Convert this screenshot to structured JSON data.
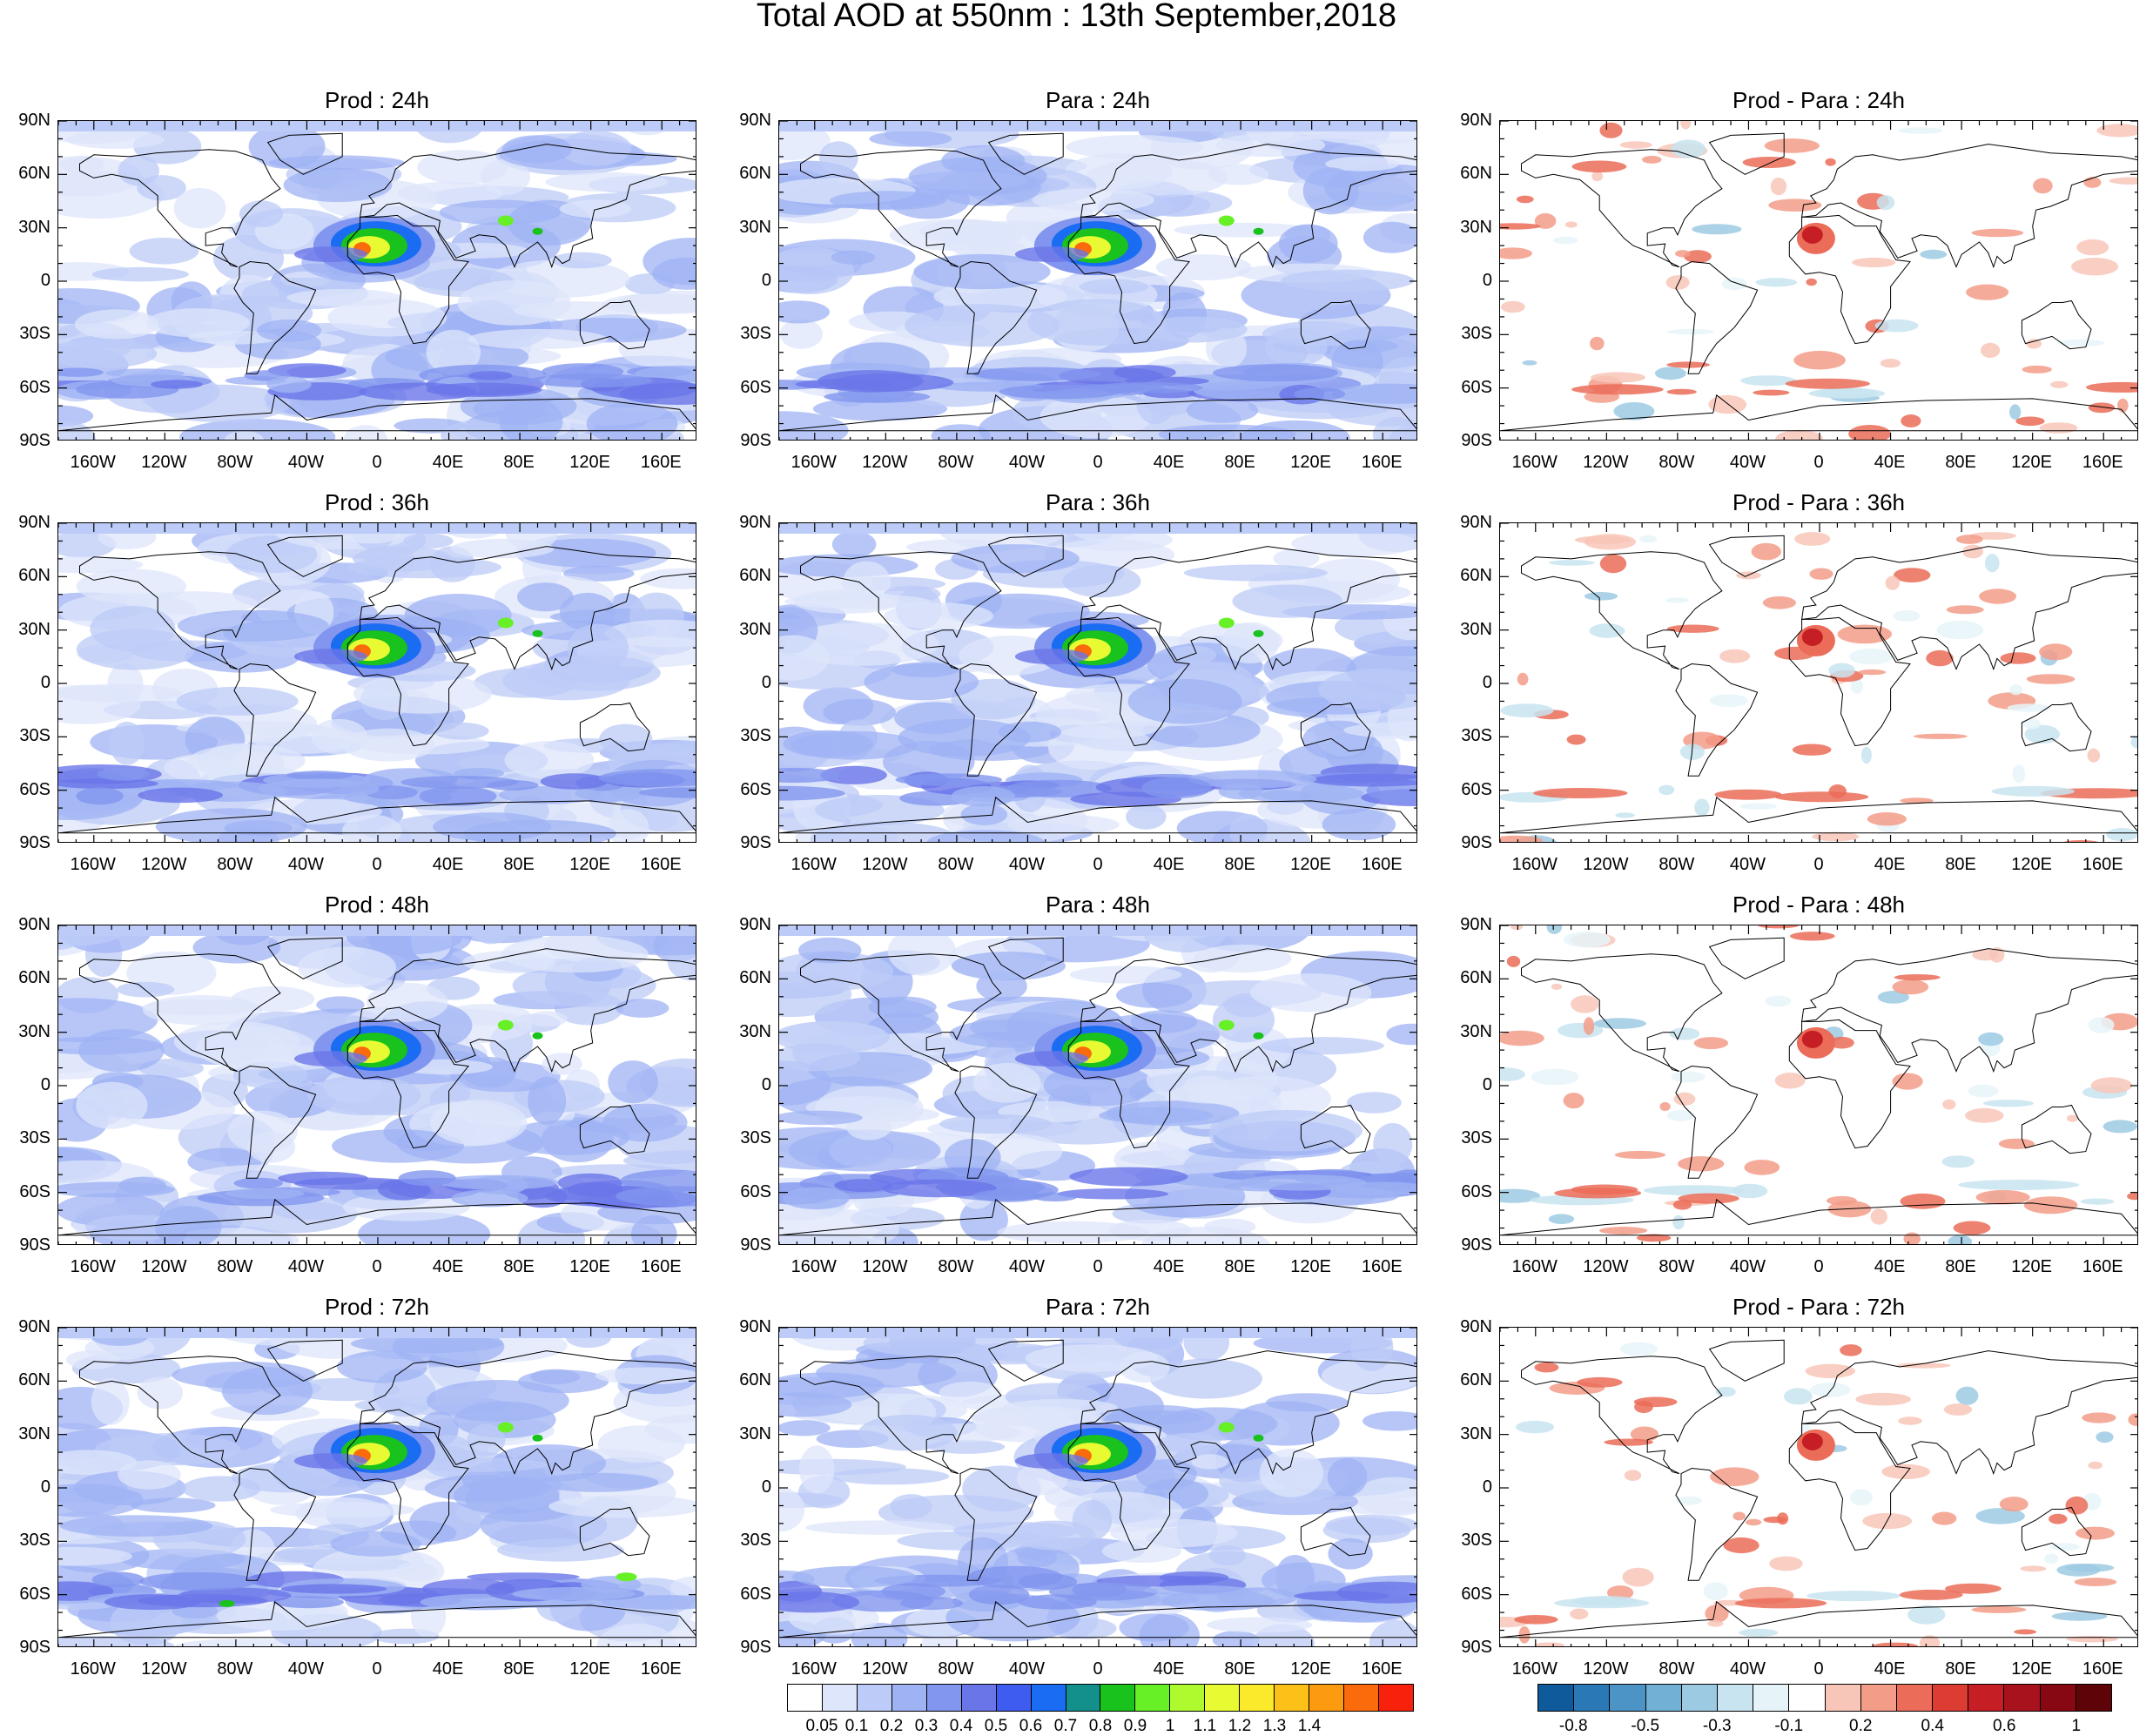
{
  "title": "Total AOD at 550nm : 13th September,2018",
  "rows": [
    {
      "hour": "24h",
      "titles": [
        "Prod : 24h",
        "Para : 24h",
        "Prod - Para : 24h"
      ]
    },
    {
      "hour": "36h",
      "titles": [
        "Prod : 36h",
        "Para : 36h",
        "Prod - Para : 36h"
      ]
    },
    {
      "hour": "48h",
      "titles": [
        "Prod : 48h",
        "Para : 48h",
        "Prod - Para : 48h"
      ]
    },
    {
      "hour": "72h",
      "titles": [
        "Prod : 72h",
        "Para : 72h",
        "Prod - Para : 72h"
      ]
    }
  ],
  "lat_labels": [
    "90N",
    "60N",
    "30N",
    "0",
    "30S",
    "60S",
    "90S"
  ],
  "lon_labels": [
    "160W",
    "120W",
    "80W",
    "40W",
    "0",
    "40E",
    "80E",
    "120E",
    "160E"
  ],
  "aod_colorbar": {
    "labels": [
      "0.05",
      "0.1",
      "0.2",
      "0.3",
      "0.4",
      "0.5",
      "0.6",
      "0.7",
      "0.8",
      "0.9",
      "1",
      "1.1",
      "1.2",
      "1.3",
      "1.4"
    ],
    "colors": [
      "#ffffff",
      "#dde6fb",
      "#bccbf7",
      "#9fb3f4",
      "#8296ef",
      "#6a75e8",
      "#3f5cf0",
      "#1a6cf3",
      "#138f8c",
      "#19c21c",
      "#67f025",
      "#aefa2f",
      "#e8fb32",
      "#fbe92c",
      "#fcc018",
      "#fc9b10",
      "#fb6a0b",
      "#f8220c"
    ]
  },
  "diff_colorbar": {
    "labels": [
      "-0.8",
      "-0.5",
      "-0.3",
      "-0.1",
      "0.2",
      "0.4",
      "0.6",
      "1"
    ],
    "colors": [
      "#0e5a9a",
      "#2a78b6",
      "#4c93c6",
      "#73b0d6",
      "#9dcae3",
      "#c8e4f0",
      "#e6f4f9",
      "#ffffff",
      "#f8c6b8",
      "#f39c88",
      "#eb6c58",
      "#dc3c32",
      "#c51e24",
      "#a8121c",
      "#870812",
      "#5e0308"
    ]
  }
}
